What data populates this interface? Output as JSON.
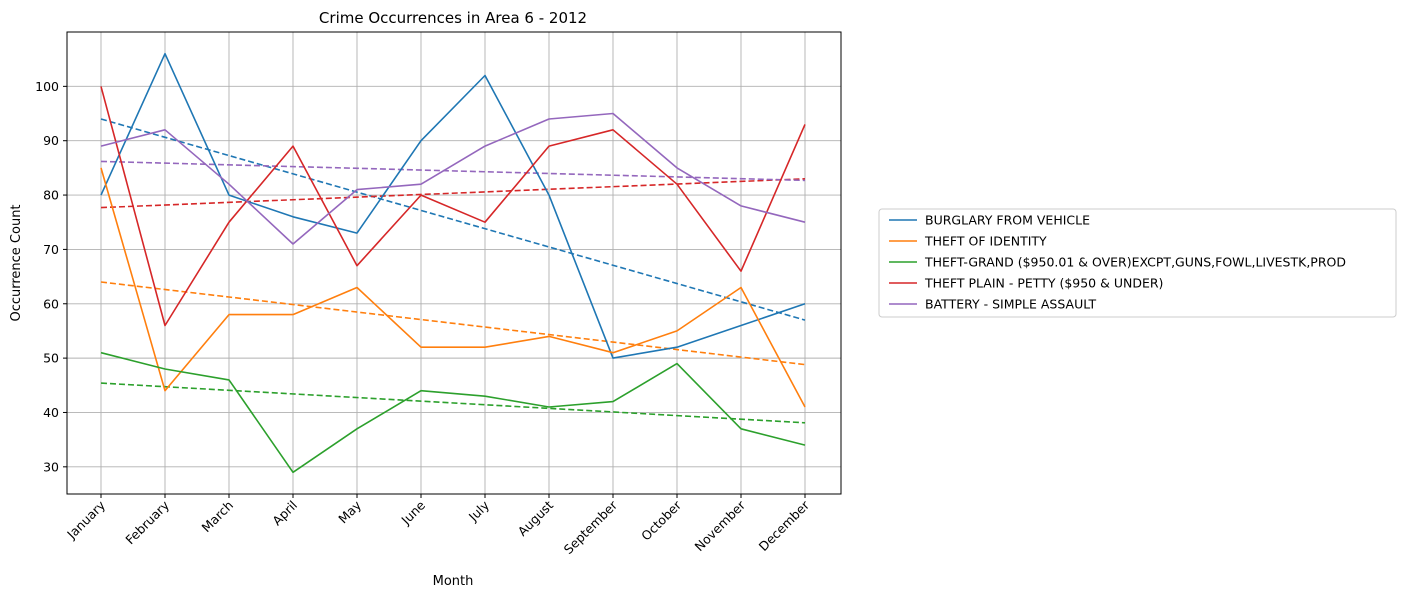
{
  "chart_data": {
    "type": "line",
    "title": "Crime Occurrences in Area 6 - 2012",
    "xlabel": "Month",
    "ylabel": "Occurrence Count",
    "categories": [
      "January",
      "February",
      "March",
      "April",
      "May",
      "June",
      "July",
      "August",
      "September",
      "October",
      "November",
      "December"
    ],
    "ylim": [
      25,
      110
    ],
    "yticks": [
      30,
      40,
      50,
      60,
      70,
      80,
      90,
      100
    ],
    "grid": true,
    "legend_position": "right",
    "trendlines": "dashed",
    "series": [
      {
        "name": "BURGLARY FROM VEHICLE",
        "color": "#1f77b4",
        "values": [
          80,
          106,
          80,
          76,
          73,
          90,
          102,
          80,
          50,
          52,
          56,
          60
        ],
        "trend": [
          94,
          57
        ]
      },
      {
        "name": "THEFT OF IDENTITY",
        "color": "#ff7f0e",
        "values": [
          85,
          44,
          58,
          58,
          63,
          52,
          52,
          54,
          51,
          55,
          63,
          41
        ],
        "trend": [
          64,
          48.8
        ]
      },
      {
        "name": "THEFT-GRAND ($950.01 & OVER)EXCPT,GUNS,FOWL,LIVESTK,PROD",
        "color": "#2ca02c",
        "values": [
          51,
          48,
          46,
          29,
          37,
          44,
          43,
          41,
          42,
          49,
          37,
          34
        ],
        "trend": [
          45.4,
          38.1
        ]
      },
      {
        "name": "THEFT PLAIN - PETTY ($950 & UNDER)",
        "color": "#d62728",
        "values": [
          100,
          56,
          75,
          89,
          67,
          80,
          75,
          89,
          92,
          82,
          66,
          93
        ],
        "trend": [
          77.7,
          83
        ]
      },
      {
        "name": "BATTERY - SIMPLE ASSAULT",
        "color": "#9467bd",
        "values": [
          89,
          92,
          82,
          71,
          81,
          82,
          89,
          94,
          95,
          85,
          78,
          75
        ],
        "trend": [
          86.2,
          82.7
        ]
      }
    ]
  }
}
